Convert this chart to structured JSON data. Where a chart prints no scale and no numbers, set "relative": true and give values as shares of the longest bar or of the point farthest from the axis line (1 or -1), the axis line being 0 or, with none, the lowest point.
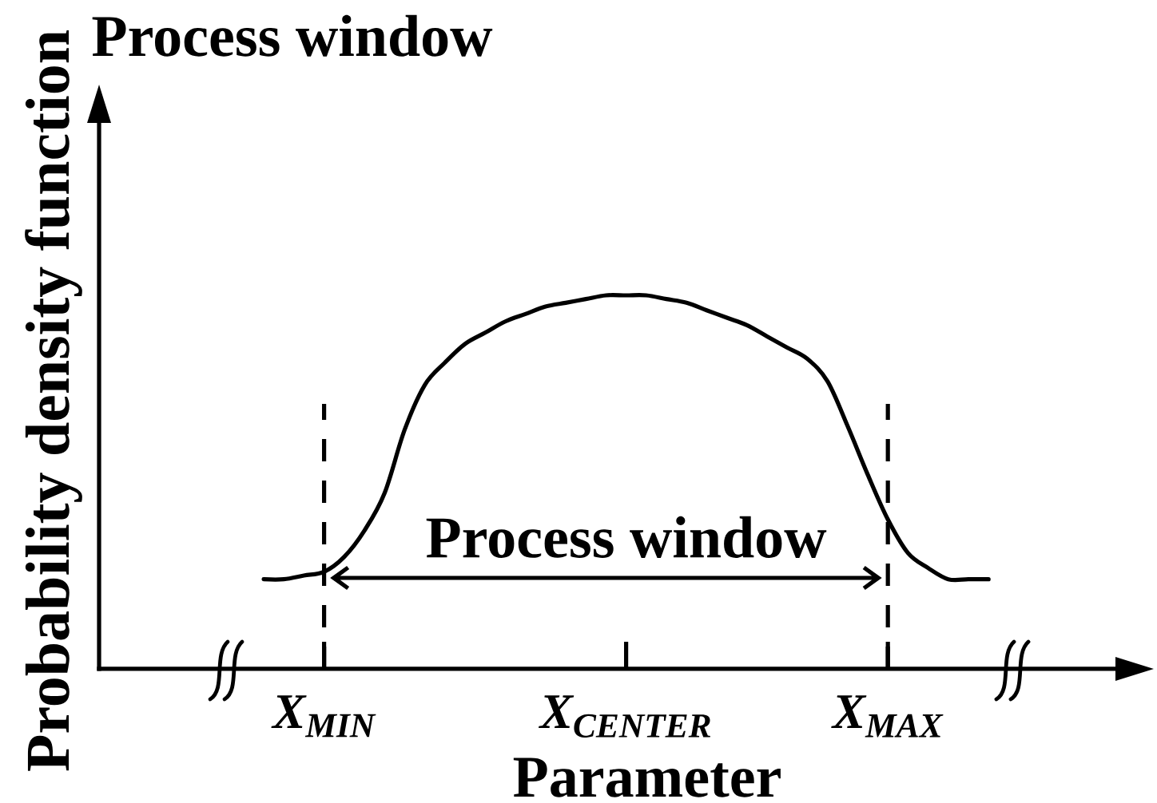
{
  "chart_data": {
    "type": "line",
    "title": "Process window",
    "xlabel": "Parameter",
    "ylabel": "Probability density function",
    "relative": true,
    "categories": [
      null,
      null,
      null,
      "X$_{MIN}$",
      null,
      null,
      null,
      null,
      null,
      null,
      null,
      null,
      null,
      null,
      null,
      null,
      null,
      null,
      "X$_{CENTER}$",
      null,
      null,
      null,
      null,
      null,
      null,
      null,
      null,
      null,
      null,
      null,
      null,
      "X$_{MAX}$",
      null,
      null,
      null,
      null,
      null
    ],
    "values": [
      0.24,
      0.24,
      0.25,
      0.26,
      0.3,
      0.37,
      0.47,
      0.64,
      0.76,
      0.82,
      0.87,
      0.9,
      0.93,
      0.95,
      0.97,
      0.98,
      0.99,
      1.0,
      1.0,
      1.0,
      0.99,
      0.98,
      0.96,
      0.94,
      0.92,
      0.89,
      0.86,
      0.83,
      0.77,
      0.65,
      0.52,
      0.4,
      0.31,
      0.27,
      0.24,
      0.24,
      0.24
    ],
    "color": "#000000",
    "line_style": "solid",
    "ref_lines": [
      {
        "axis": "x",
        "value": "X$_{MIN}$",
        "line_style": "dashed"
      },
      {
        "axis": "x",
        "value": "X$_{MAX}$",
        "line_style": "dashed"
      }
    ],
    "annotations": [
      "Process window"
    ]
  }
}
